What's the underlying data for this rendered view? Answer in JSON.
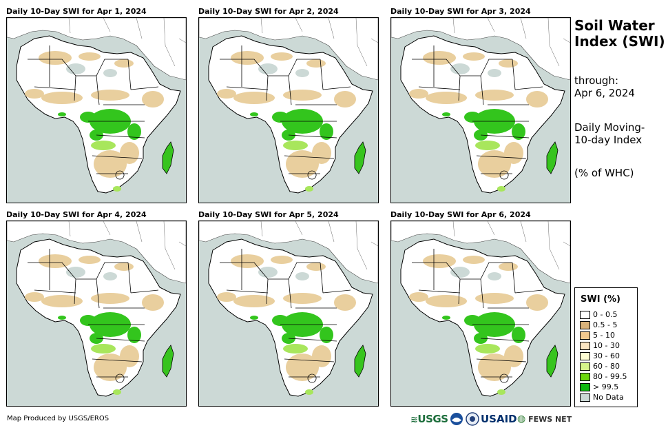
{
  "panels": [
    {
      "title": "Daily 10-Day SWI for Apr 1, 2024"
    },
    {
      "title": "Daily 10-Day SWI for Apr 2, 2024"
    },
    {
      "title": "Daily 10-Day SWI for Apr 3, 2024"
    },
    {
      "title": "Daily 10-Day SWI for Apr 4, 2024"
    },
    {
      "title": "Daily 10-Day SWI for Apr 5, 2024"
    },
    {
      "title": "Daily 10-Day SWI for Apr 6, 2024"
    }
  ],
  "sidebar": {
    "title": "Soil Water Index (SWI)",
    "through_label": "through:",
    "through_date": "Apr 6, 2024",
    "index_desc": "Daily Moving-10-day Index",
    "unit": "(% of WHC)"
  },
  "legend": {
    "title": "SWI (%)",
    "items": [
      {
        "label": "0 - 0.5",
        "color": "#ffffff"
      },
      {
        "label": "0.5 - 5",
        "color": "#d9b27a"
      },
      {
        "label": "5 - 10",
        "color": "#f2c98f"
      },
      {
        "label": "10 - 30",
        "color": "#fbe5c2"
      },
      {
        "label": "30 - 60",
        "color": "#fdfcd2"
      },
      {
        "label": "60 - 80",
        "color": "#d6f58a"
      },
      {
        "label": "80 - 99.5",
        "color": "#6ad80e"
      },
      {
        "label": "> 99.5",
        "color": "#10b810"
      },
      {
        "label": "No Data",
        "color": "#ccd9d6"
      }
    ]
  },
  "footer": {
    "credit": "Map Produced by USGS/EROS",
    "logos": [
      "USGS",
      "NOAA",
      "USAID",
      "FEWS NET"
    ]
  },
  "colors": {
    "ocean": "#ccd9d6",
    "land": "#ffffff",
    "dry": "#e9cf9e",
    "wet": "#33c51d"
  }
}
